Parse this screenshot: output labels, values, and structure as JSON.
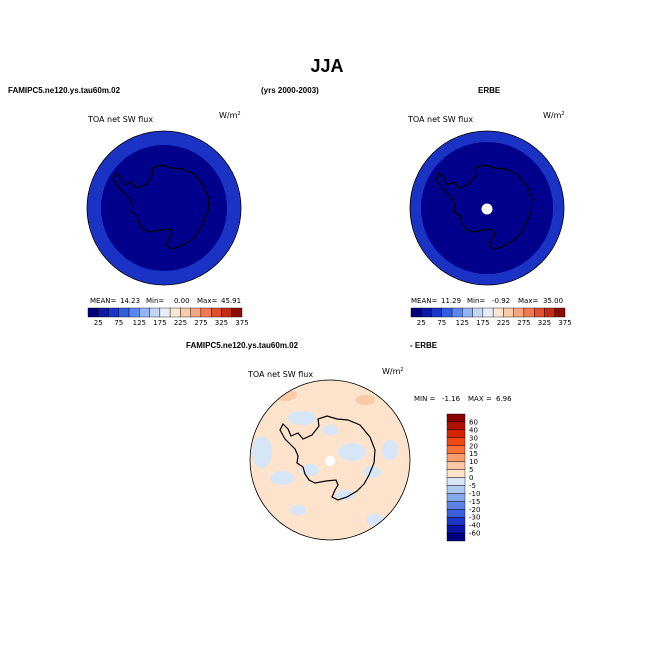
{
  "main_title": "JJA",
  "header": {
    "left_title": "FAMIPC5.ne120.ys.tau60m.02",
    "years": "(yrs 2000-2003)",
    "right_title": "ERBE"
  },
  "panels": [
    {
      "variable": "TOA net SW flux",
      "units": "W/m",
      "units_sup": "2",
      "stats": {
        "mean_label": "MEAN=",
        "mean": "14.23",
        "min_label": "Min=",
        "min": "0.00",
        "max_label": "Max=",
        "max": "45.91"
      }
    },
    {
      "variable": "TOA net SW flux",
      "units": "W/m",
      "units_sup": "2",
      "stats": {
        "mean_label": "MEAN=",
        "mean": "11.29",
        "min_label": "Min=",
        "min": "-0.92",
        "max_label": "Max=",
        "max": "35.00"
      }
    }
  ],
  "absolute_colorbar": {
    "labels": [
      "25",
      "75",
      "125",
      "175",
      "225",
      "275",
      "325",
      "375"
    ],
    "colors": [
      "#00007a",
      "#0a1aa3",
      "#1638c8",
      "#2f5ee0",
      "#5a86ef",
      "#93b4f5",
      "#c4d6f8",
      "#e6eefb",
      "#fde6d2",
      "#fbcba8",
      "#f7a57c",
      "#f07a52",
      "#e2502f",
      "#c32b16",
      "#8b0d05"
    ]
  },
  "difference": {
    "title_left": "FAMIPC5.ne120.ys.tau60m.02",
    "title_right": "- ERBE",
    "variable": "TOA net SW flux",
    "units": "W/m",
    "units_sup": "2",
    "minmax": {
      "min_label": "MIN =",
      "min": "-1.16",
      "max_label": "MAX =",
      "max": "6.96"
    },
    "colorbar": {
      "labels": [
        "60",
        "40",
        "30",
        "20",
        "15",
        "10",
        "5",
        "0",
        "-5",
        "-10",
        "-15",
        "-20",
        "-30",
        "-40",
        "-60"
      ],
      "colors": [
        "#8b0000",
        "#b01000",
        "#d42500",
        "#ee4a12",
        "#f7713a",
        "#fa9b6c",
        "#fcc7a2",
        "#fde2cc",
        "#d6e6f6",
        "#aecbef",
        "#84a8ea",
        "#5b83e4",
        "#3a5fdb",
        "#1f36cc",
        "#0a14a8",
        "#000080"
      ]
    }
  },
  "map_colors": {
    "ocean_band": "#1a33c4",
    "inner": "#00008c",
    "diff_base": "#fde2cc",
    "diff_negative": "#d6e6f6",
    "diff_positive": "#fbcba8"
  }
}
